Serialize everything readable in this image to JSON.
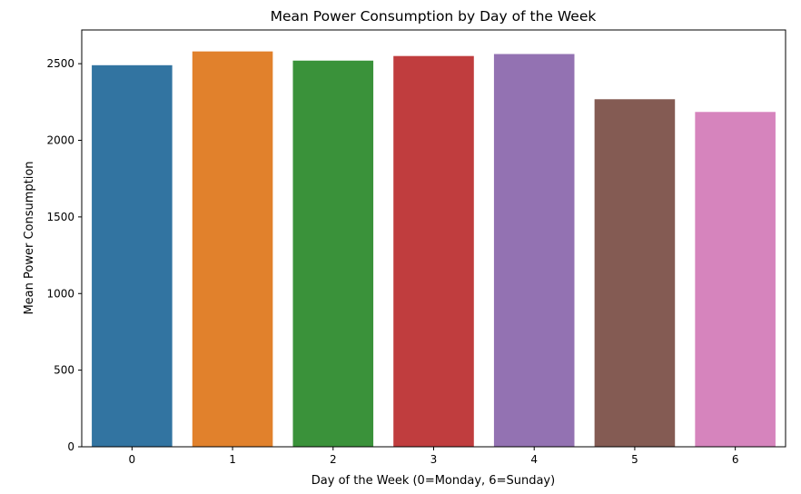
{
  "chart_data": {
    "type": "bar",
    "title": "Mean Power Consumption by Day of the Week",
    "xlabel": "Day of the Week (0=Monday, 6=Sunday)",
    "ylabel": "Mean Power Consumption",
    "categories": [
      "0",
      "1",
      "2",
      "3",
      "4",
      "5",
      "6"
    ],
    "values": [
      2490,
      2580,
      2520,
      2550,
      2563,
      2268,
      2185
    ],
    "colors": [
      "#3274a1",
      "#e1812c",
      "#3a923a",
      "#c03d3e",
      "#9372b2",
      "#845b53",
      "#d684bd"
    ],
    "ylim": [
      0,
      2720
    ],
    "yticks": [
      0,
      500,
      1000,
      1500,
      2000,
      2500
    ],
    "grid": false,
    "legend": false
  }
}
